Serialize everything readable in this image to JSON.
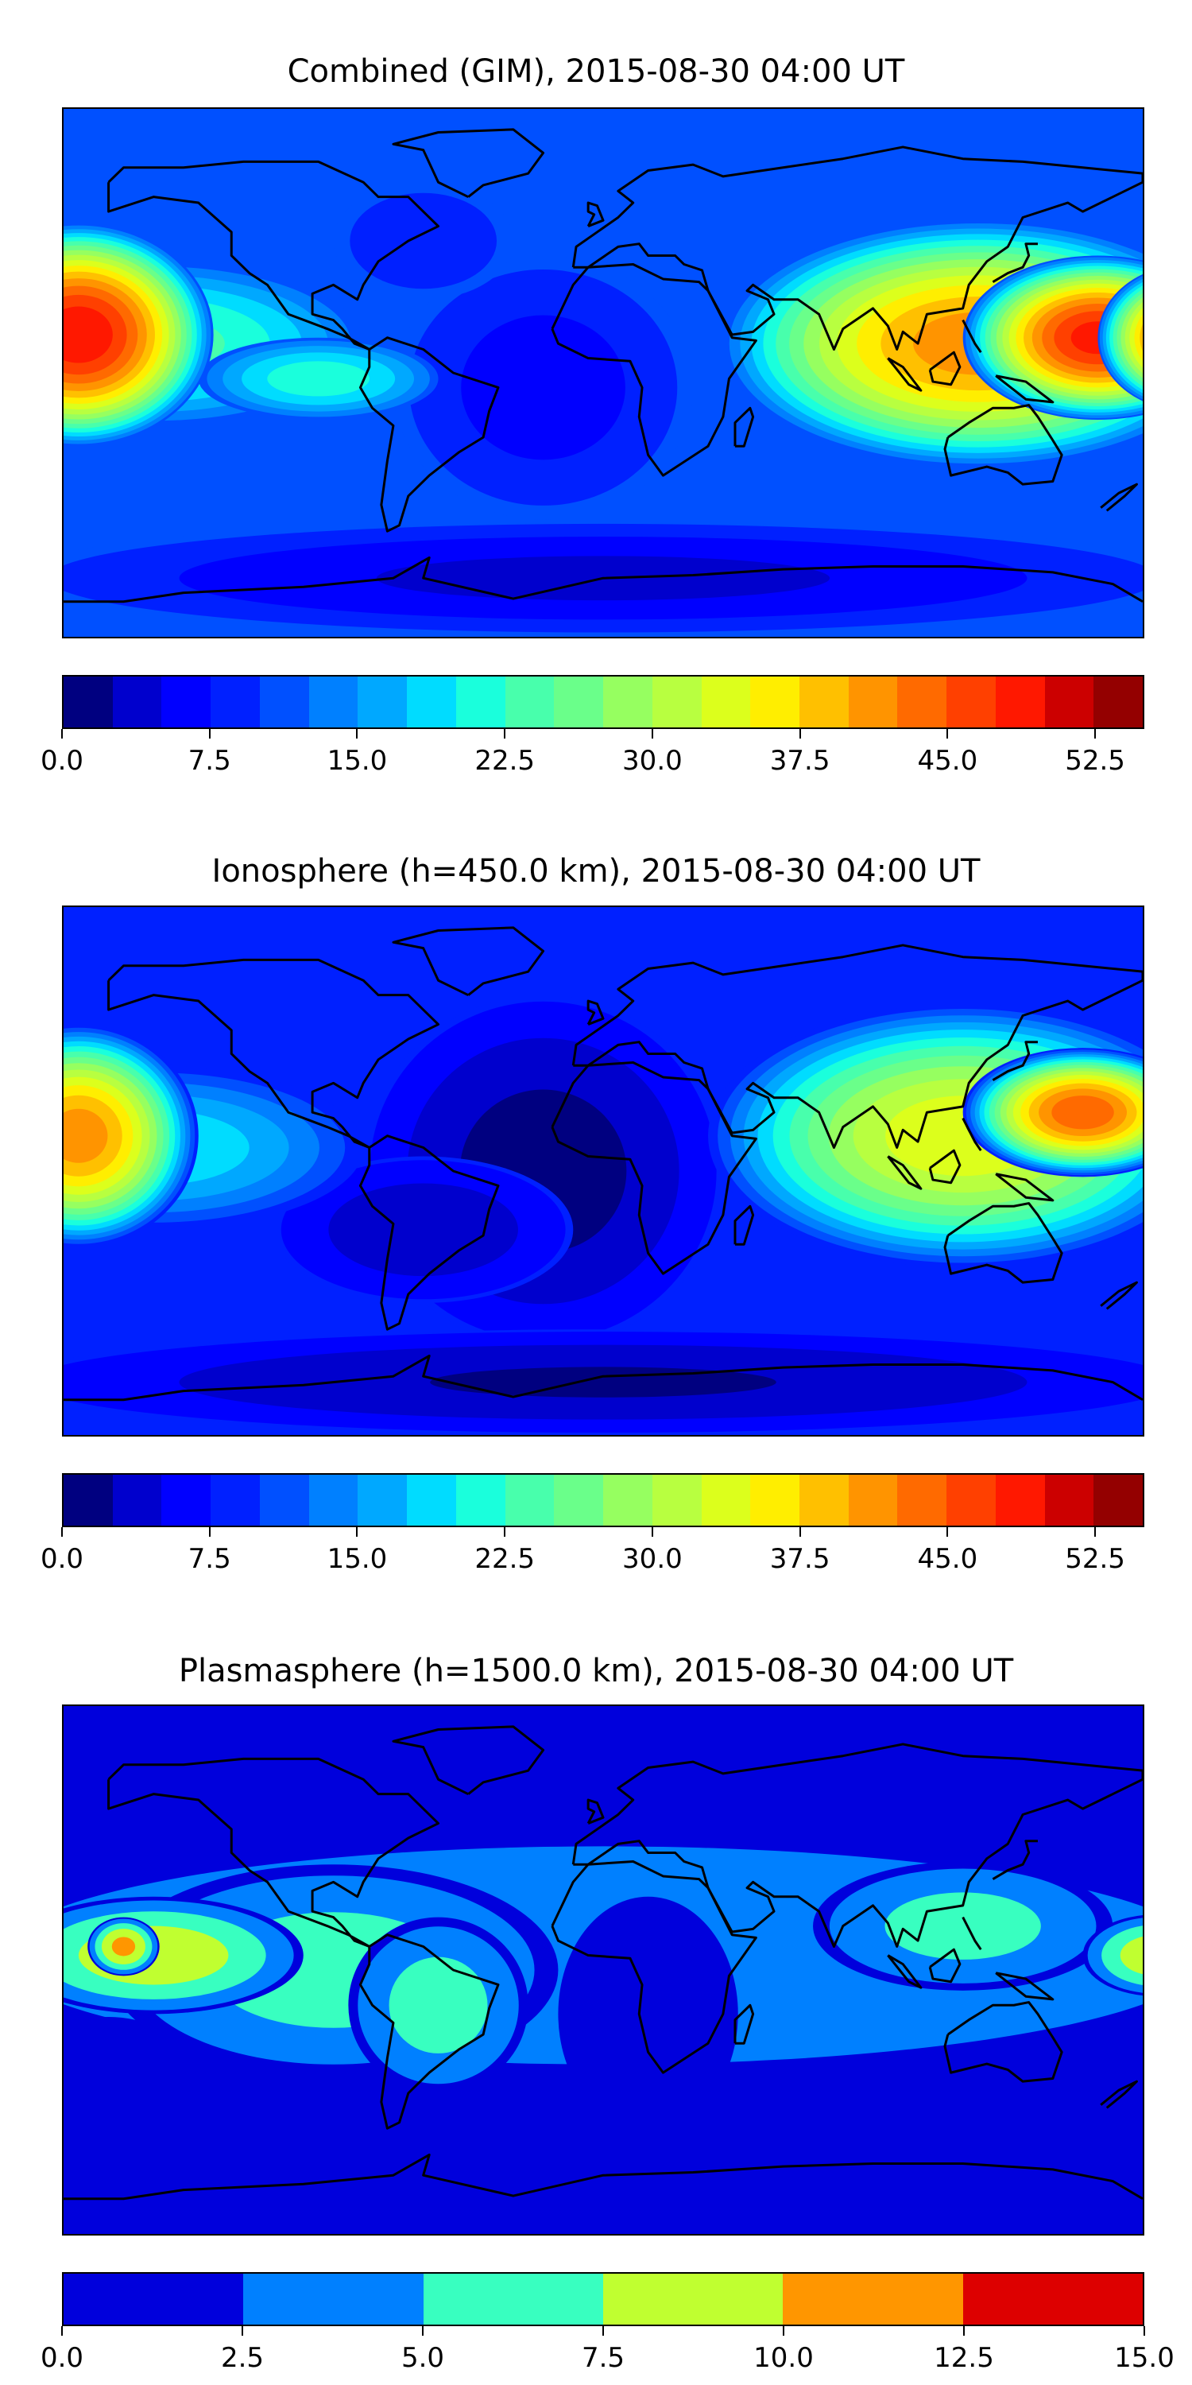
{
  "chart_data": [
    {
      "type": "heatmap",
      "title": "Combined (GIM), 2015-08-30 04:00 UT",
      "levels": [
        0,
        2.5,
        5,
        7.5,
        10,
        12.5,
        15,
        17.5,
        20,
        22.5,
        25,
        27.5,
        30,
        32.5,
        35,
        37.5,
        40,
        42.5,
        45,
        47.5,
        50,
        52.5,
        55
      ],
      "colors": [
        "#000080",
        "#0000cd",
        "#0000ff",
        "#0020ff",
        "#0050ff",
        "#0080ff",
        "#00a8ff",
        "#00dcff",
        "#1affdc",
        "#48ffac",
        "#6aff8a",
        "#96ff60",
        "#b8ff40",
        "#dcff1c",
        "#ffee00",
        "#ffc000",
        "#ff9400",
        "#ff6a00",
        "#ff4000",
        "#ff1800",
        "#cc0000",
        "#940000"
      ],
      "ticks": [
        "0.0",
        "7.5",
        "15.0",
        "22.5",
        "30.0",
        "37.5",
        "45.0",
        "52.5"
      ],
      "tick_values": [
        0,
        7.5,
        15,
        22.5,
        30,
        37.5,
        45,
        52.5
      ],
      "range": [
        0,
        55
      ],
      "background_value": 11,
      "features": [
        {
          "lon": -20,
          "lat": -5,
          "value": 6,
          "rlon": 50,
          "rlat": 45
        },
        {
          "lon": 0,
          "lat": -70,
          "value": 4,
          "rlon": 200,
          "rlat": 20
        },
        {
          "lon": -60,
          "lat": 45,
          "value": 8,
          "rlon": 30,
          "rlat": 20
        },
        {
          "lon": -150,
          "lat": 10,
          "value": 24,
          "rlon": 70,
          "rlat": 28
        },
        {
          "lon": -95,
          "lat": -2,
          "value": 22,
          "rlon": 40,
          "rlat": 14
        },
        {
          "lon": -175,
          "lat": 13,
          "value": 50,
          "rlon": 45,
          "rlat": 38
        },
        {
          "lon": 125,
          "lat": 10,
          "value": 42,
          "rlon": 85,
          "rlat": 42
        },
        {
          "lon": 165,
          "lat": 12,
          "value": 49,
          "rlon": 45,
          "rlat": 28
        },
        {
          "lon": 195,
          "lat": 12,
          "value": 48,
          "rlon": 30,
          "rlat": 25
        }
      ]
    },
    {
      "type": "heatmap",
      "title": "Ionosphere  (h=450.0 km), 2015-08-30 04:00 UT",
      "levels": [
        0,
        2.5,
        5,
        7.5,
        10,
        12.5,
        15,
        17.5,
        20,
        22.5,
        25,
        27.5,
        30,
        32.5,
        35,
        37.5,
        40,
        42.5,
        45,
        47.5,
        50,
        52.5,
        55
      ],
      "colors": [
        "#000080",
        "#0000cd",
        "#0000ff",
        "#0020ff",
        "#0050ff",
        "#0080ff",
        "#00a8ff",
        "#00dcff",
        "#1affdc",
        "#48ffac",
        "#6aff8a",
        "#96ff60",
        "#b8ff40",
        "#dcff1c",
        "#ffee00",
        "#ffc000",
        "#ff9400",
        "#ff6a00",
        "#ff4000",
        "#ff1800",
        "#cc0000",
        "#940000"
      ],
      "ticks": [
        "0.0",
        "7.5",
        "15.0",
        "22.5",
        "30.0",
        "37.5",
        "45.0",
        "52.5"
      ],
      "tick_values": [
        0,
        7.5,
        15,
        22.5,
        30,
        37.5,
        45,
        52.5
      ],
      "range": [
        0,
        55
      ],
      "background_value": 8,
      "features": [
        {
          "lon": -20,
          "lat": 0,
          "value": 1,
          "rlon": 60,
          "rlat": 60
        },
        {
          "lon": -60,
          "lat": -20,
          "value": 3,
          "rlon": 50,
          "rlat": 25
        },
        {
          "lon": 0,
          "lat": -72,
          "value": 2,
          "rlon": 200,
          "rlat": 18
        },
        {
          "lon": -150,
          "lat": 8,
          "value": 20,
          "rlon": 70,
          "rlat": 28
        },
        {
          "lon": -175,
          "lat": 12,
          "value": 42,
          "rlon": 40,
          "rlat": 38
        },
        {
          "lon": 120,
          "lat": 12,
          "value": 35,
          "rlon": 85,
          "rlat": 45
        },
        {
          "lon": 160,
          "lat": 20,
          "value": 45,
          "rlon": 40,
          "rlat": 22
        }
      ]
    },
    {
      "type": "heatmap",
      "title": "Plasmasphere (h=1500.0 km), 2015-08-30 04:00 UT",
      "levels": [
        0,
        2.5,
        5,
        7.5,
        10,
        12.5,
        15
      ],
      "colors": [
        "#0000dc",
        "#0080ff",
        "#38ffc0",
        "#c0ff30",
        "#ff9600",
        "#dd0000"
      ],
      "ticks": [
        "0.0",
        "2.5",
        "5.0",
        "7.5",
        "10.0",
        "12.5",
        "15.0"
      ],
      "tick_values": [
        0,
        2.5,
        5,
        7.5,
        10,
        12.5,
        15
      ],
      "range": [
        0,
        15
      ],
      "background_value": 1.5,
      "features": [
        {
          "lon": 0,
          "lat": 5,
          "value": 4,
          "rlon": 260,
          "rlat": 48
        },
        {
          "lon": -90,
          "lat": 0,
          "value": 6.5,
          "rlon": 75,
          "rlat": 36
        },
        {
          "lon": -55,
          "lat": -12,
          "value": 6.5,
          "rlon": 30,
          "rlat": 30
        },
        {
          "lon": -150,
          "lat": 5,
          "value": 9.5,
          "rlon": 50,
          "rlat": 20
        },
        {
          "lon": -160,
          "lat": 8,
          "value": 11,
          "rlon": 12,
          "rlat": 10
        },
        {
          "lon": -165,
          "lat": -28,
          "value": 1,
          "rlon": 22,
          "rlat": 12
        },
        {
          "lon": 15,
          "lat": -15,
          "value": 1,
          "rlon": 30,
          "rlat": 40
        },
        {
          "lon": 30,
          "lat": 25,
          "value": 1.5,
          "rlon": 5,
          "rlat": 10
        },
        {
          "lon": 120,
          "lat": 15,
          "value": 6.3,
          "rlon": 50,
          "rlat": 22
        },
        {
          "lon": 185,
          "lat": 5,
          "value": 9.5,
          "rlon": 25,
          "rlat": 14
        }
      ]
    }
  ]
}
